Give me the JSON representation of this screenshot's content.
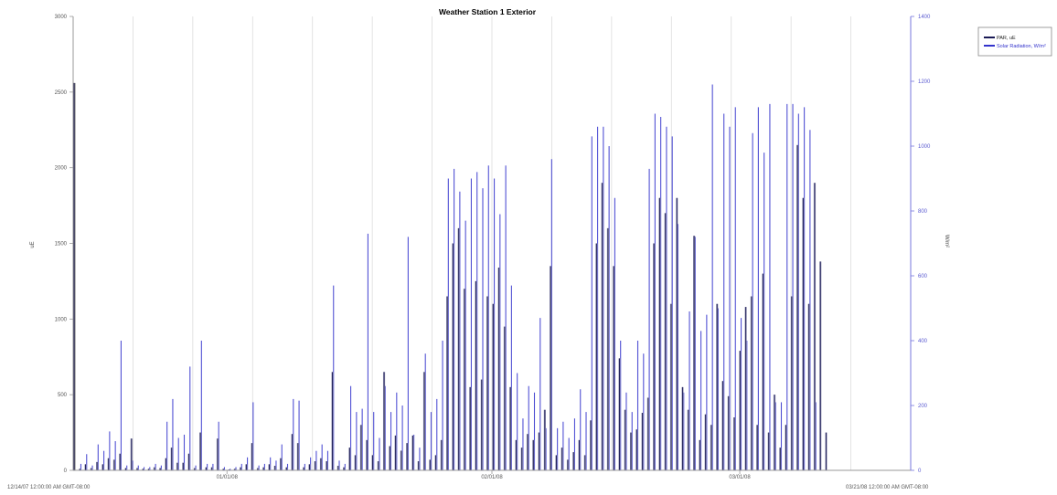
{
  "chart_data": {
    "type": "bar",
    "title": "Weather Station 1 Exterior",
    "xlabel": "",
    "ylabel": "uE",
    "y2label": "W/m²",
    "ylim": [
      0,
      3000
    ],
    "y2lim": [
      0,
      1400
    ],
    "yticks": [
      "0",
      "500",
      "1000",
      "1500",
      "2000",
      "2500",
      "3000"
    ],
    "y2ticks": [
      "0",
      "200",
      "400",
      "600",
      "800",
      "1000",
      "1200",
      "1400"
    ],
    "x_start_label": "12/14/07 12:00:00 AM GMT-08:00",
    "x_end_label": "03/21/08 12:00:00 AM GMT-08:00",
    "x_date_labels": [
      "01/01/08",
      "02/01/08",
      "03/01/08"
    ],
    "x_range_days": [
      0,
      98
    ],
    "x_date_label_days": [
      18,
      49,
      78
    ],
    "gridlines": true,
    "legend_position": "top-right",
    "series": [
      {
        "name": "PAR, uE",
        "color": "#1a1a55",
        "values": [
          2560,
          10,
          40,
          15,
          55,
          40,
          80,
          70,
          110,
          15,
          210,
          15,
          10,
          10,
          20,
          15,
          80,
          150,
          50,
          50,
          110,
          15,
          250,
          20,
          20,
          210,
          10,
          5,
          10,
          20,
          40,
          180,
          15,
          20,
          40,
          30,
          80,
          20,
          240,
          180,
          20,
          40,
          60,
          80,
          60,
          650,
          30,
          20,
          150,
          100,
          300,
          200,
          100,
          60,
          650,
          160,
          230,
          130,
          180,
          230,
          60,
          650,
          70,
          100,
          200,
          1150,
          1500,
          1600,
          1200,
          550,
          1250,
          600,
          1150,
          1100,
          1340,
          950,
          550,
          200,
          150,
          240,
          200,
          250,
          400,
          1350,
          100,
          150,
          70,
          120,
          200,
          100,
          330,
          1500,
          1900,
          1600,
          1350,
          740,
          400,
          250,
          270,
          380,
          480,
          1500,
          1800,
          1700,
          1100,
          1800,
          550,
          400,
          1550,
          200,
          370,
          300,
          1100,
          590,
          490,
          350,
          790,
          1080,
          1150,
          300,
          1300,
          250,
          500,
          150,
          300,
          1150,
          2150,
          1800,
          1100,
          1900,
          1380,
          250
        ],
        "label_note": ""
      },
      {
        "name": "Solar Radiation, W/m²",
        "color": "#3333cc",
        "values": [
          0,
          20,
          50,
          15,
          80,
          60,
          120,
          90,
          400,
          15,
          30,
          15,
          10,
          10,
          20,
          15,
          150,
          220,
          100,
          110,
          320,
          15,
          400,
          20,
          20,
          150,
          10,
          5,
          10,
          20,
          40,
          210,
          15,
          20,
          40,
          30,
          80,
          20,
          220,
          215,
          20,
          40,
          60,
          80,
          60,
          570,
          30,
          20,
          260,
          180,
          190,
          730,
          180,
          100,
          260,
          180,
          240,
          200,
          720,
          110,
          70,
          360,
          180,
          220,
          400,
          900,
          930,
          860,
          770,
          900,
          920,
          870,
          940,
          900,
          790,
          940,
          570,
          300,
          160,
          260,
          240,
          470,
          130,
          960,
          130,
          150,
          100,
          160,
          250,
          180,
          1030,
          1060,
          1060,
          1000,
          840,
          400,
          240,
          180,
          400,
          360,
          930,
          1100,
          1090,
          1060,
          1030,
          760,
          240,
          490,
          720,
          430,
          480,
          1190,
          500,
          1100,
          1060,
          1120,
          470,
          400,
          1040,
          1120,
          980,
          1130,
          210,
          210,
          1130,
          1130,
          1100,
          1120,
          1050,
          210
        ],
        "label_note": ""
      }
    ]
  },
  "legend": {
    "items": [
      "PAR, uE",
      "Solar Radiation, W/m²"
    ]
  }
}
